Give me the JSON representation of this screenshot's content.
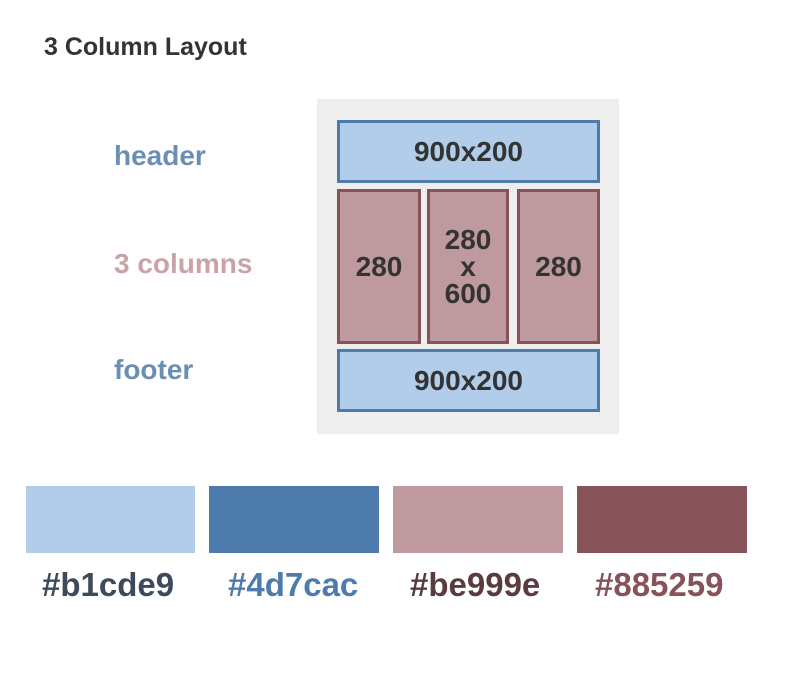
{
  "title": "3 Column Layout",
  "labels": {
    "header": "header",
    "columns": "3 columns",
    "footer": "footer"
  },
  "diagram": {
    "header_box": "900x200",
    "col_left": "280",
    "col_center_lines": [
      "280",
      "x",
      "600"
    ],
    "col_right": "280",
    "footer_box": "900x200"
  },
  "palette": [
    {
      "hex": "#b1cde9",
      "label": "#b1cde9"
    },
    {
      "hex": "#4d7cac",
      "label": "#4d7cac"
    },
    {
      "hex": "#be999e",
      "label": "#be999e"
    },
    {
      "hex": "#885259",
      "label": "#885259"
    }
  ]
}
